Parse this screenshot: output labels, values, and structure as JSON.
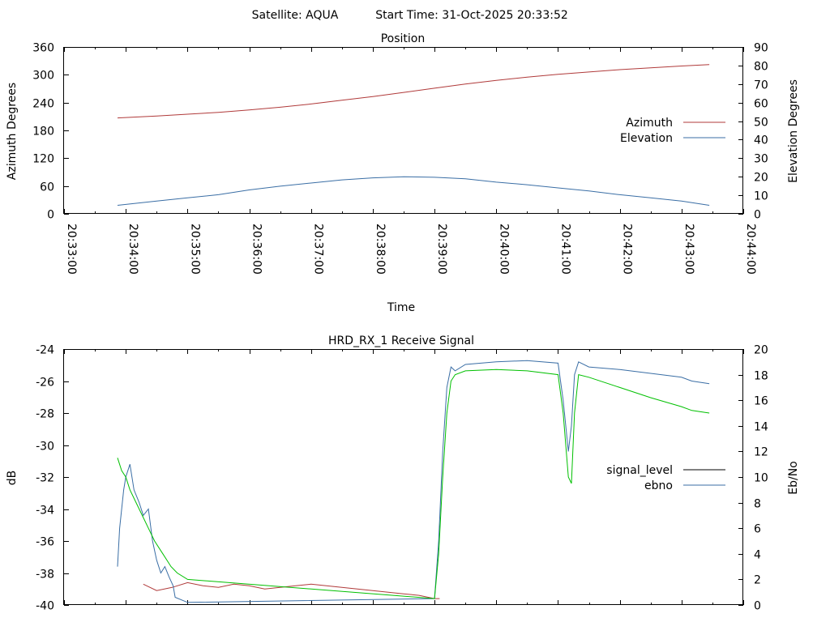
{
  "header": {
    "satellite_label": "Satellite: AQUA",
    "start_time_label": "Start Time: 31-Oct-2025 20:33:52"
  },
  "chart_data": [
    {
      "type": "line",
      "title": "Position",
      "xlabel": "Time",
      "ylabel": "Azimuth Degrees",
      "y2label": "Elevation Degrees",
      "x_ticks": [
        "20:33:00",
        "20:34:00",
        "20:35:00",
        "20:36:00",
        "20:37:00",
        "20:38:00",
        "20:39:00",
        "20:40:00",
        "20:41:00",
        "20:42:00",
        "20:43:00",
        "20:44:00"
      ],
      "xlim": [
        "20:33:00",
        "20:44:00"
      ],
      "ylim": [
        0,
        360
      ],
      "y_ticks": [
        0,
        60,
        120,
        180,
        240,
        300,
        360
      ],
      "y2lim": [
        0,
        90
      ],
      "y2_ticks": [
        0,
        10,
        20,
        30,
        40,
        50,
        60,
        70,
        80,
        90
      ],
      "legend": "right",
      "grid": false,
      "series": [
        {
          "name": "Azimuth",
          "axis": "y",
          "color": "#b03a3a",
          "x": [
            "20:33:52",
            "20:34:30",
            "20:35:00",
            "20:35:30",
            "20:36:00",
            "20:36:30",
            "20:37:00",
            "20:37:30",
            "20:38:00",
            "20:38:30",
            "20:39:00",
            "20:39:30",
            "20:40:00",
            "20:40:30",
            "20:41:00",
            "20:41:30",
            "20:42:00",
            "20:42:30",
            "20:43:00",
            "20:43:27"
          ],
          "values": [
            207,
            211,
            215,
            219,
            224,
            230,
            237,
            245,
            253,
            262,
            271,
            280,
            288,
            295,
            301,
            306,
            311,
            315,
            319,
            322
          ]
        },
        {
          "name": "Elevation",
          "axis": "y2",
          "color": "#3a6ea5",
          "x": [
            "20:33:52",
            "20:34:30",
            "20:35:00",
            "20:35:30",
            "20:36:00",
            "20:36:30",
            "20:37:00",
            "20:37:30",
            "20:38:00",
            "20:38:30",
            "20:39:00",
            "20:39:30",
            "20:40:00",
            "20:40:30",
            "20:41:00",
            "20:41:30",
            "20:42:00",
            "20:42:30",
            "20:43:00",
            "20:43:27"
          ],
          "values": [
            4.6,
            6.9,
            8.6,
            10.3,
            12.9,
            14.9,
            16.6,
            18.3,
            19.4,
            20.0,
            19.7,
            18.9,
            17.1,
            15.7,
            14.0,
            12.3,
            10.3,
            8.6,
            6.9,
            4.6
          ]
        }
      ]
    },
    {
      "type": "line",
      "title": "HRD_RX_1 Receive Signal",
      "xlabel": "",
      "ylabel": "dB",
      "y2label": "Eb/No",
      "xlim": [
        "20:33:00",
        "20:44:00"
      ],
      "ylim": [
        -40,
        -24
      ],
      "y_ticks": [
        -40,
        -38,
        -36,
        -34,
        -32,
        -30,
        -28,
        -26,
        -24
      ],
      "y2lim": [
        0,
        20
      ],
      "y2_ticks": [
        0,
        2,
        4,
        6,
        8,
        10,
        12,
        14,
        16,
        18,
        20
      ],
      "legend": "right",
      "grid": false,
      "series": [
        {
          "name": "signal_level",
          "axis": "y",
          "color": "#b03a3a",
          "x": [
            "20:34:17",
            "20:34:30",
            "20:34:45",
            "20:35:00",
            "20:35:15",
            "20:35:30",
            "20:35:45",
            "20:36:00",
            "20:36:15",
            "20:36:30",
            "20:36:45",
            "20:37:00",
            "20:37:15",
            "20:37:30",
            "20:37:45",
            "20:38:00",
            "20:38:15",
            "20:38:30",
            "20:38:45",
            "20:39:00",
            "20:39:05"
          ],
          "values": [
            -38.7,
            -39.1,
            -38.9,
            -38.6,
            -38.8,
            -38.9,
            -38.7,
            -38.8,
            -39.0,
            -38.9,
            -38.8,
            -38.7,
            -38.8,
            -38.9,
            -39.0,
            -39.1,
            -39.2,
            -39.3,
            -39.4,
            -39.6,
            -39.6
          ]
        },
        {
          "name": "ebno",
          "axis": "y2",
          "color": "#3a6ea5",
          "x": [
            "20:33:52",
            "20:33:54",
            "20:33:58",
            "20:34:00",
            "20:34:04",
            "20:34:08",
            "20:34:13",
            "20:34:17",
            "20:34:22",
            "20:34:26",
            "20:34:30",
            "20:34:34",
            "20:34:38",
            "20:34:42",
            "20:34:46",
            "20:34:48",
            "20:35:00",
            "20:39:00",
            "20:39:04",
            "20:39:08",
            "20:39:12",
            "20:39:16",
            "20:39:20",
            "20:39:30",
            "20:40:00",
            "20:40:30",
            "20:41:00",
            "20:41:05",
            "20:41:10",
            "20:41:13",
            "20:41:16",
            "20:41:20",
            "20:41:30",
            "20:42:00",
            "20:42:30",
            "20:43:00",
            "20:43:10",
            "20:43:27"
          ],
          "values": [
            3.0,
            6.0,
            9.0,
            10.0,
            11.0,
            9.0,
            8.0,
            7.0,
            7.5,
            5.0,
            3.5,
            2.5,
            3.0,
            2.2,
            1.5,
            0.6,
            0.2,
            0.5,
            5.0,
            12.0,
            17.0,
            18.6,
            18.3,
            18.8,
            19.0,
            19.1,
            18.9,
            16.0,
            12.0,
            14.0,
            18.0,
            19.0,
            18.6,
            18.4,
            18.1,
            17.8,
            17.5,
            17.3
          ]
        },
        {
          "name": "",
          "axis": "y2",
          "color": "#00c000",
          "x": [
            "20:33:52",
            "20:33:56",
            "20:34:00",
            "20:34:04",
            "20:34:10",
            "20:34:16",
            "20:34:22",
            "20:34:28",
            "20:34:36",
            "20:34:44",
            "20:34:50",
            "20:35:00",
            "20:39:00",
            "20:39:04",
            "20:39:08",
            "20:39:12",
            "20:39:16",
            "20:39:20",
            "20:39:30",
            "20:40:00",
            "20:40:30",
            "20:41:00",
            "20:41:05",
            "20:41:10",
            "20:41:13",
            "20:41:16",
            "20:41:20",
            "20:41:30",
            "20:42:00",
            "20:42:30",
            "20:43:00",
            "20:43:10",
            "20:43:27"
          ],
          "values": [
            11.5,
            10.5,
            10.0,
            9.0,
            8.0,
            7.0,
            6.0,
            5.0,
            4.0,
            3.0,
            2.5,
            2.0,
            0.5,
            4.0,
            10.0,
            15.0,
            17.5,
            18.0,
            18.3,
            18.4,
            18.3,
            18.0,
            15.0,
            10.0,
            9.5,
            15.0,
            18.0,
            17.8,
            17.0,
            16.2,
            15.5,
            15.2,
            15.0
          ]
        }
      ]
    }
  ]
}
